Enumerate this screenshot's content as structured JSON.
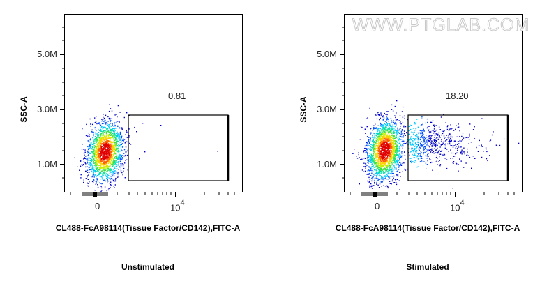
{
  "watermark": "WWW.PTGLAB.COM",
  "chart_data": [
    {
      "type": "scatter",
      "subtype": "flow-cytometry-density-dot-plot",
      "title": "Unstimulated",
      "xlabel": "CL488-FcA98114(Tissue Factor/CD142),FITC-A",
      "ylabel": "SSC-A",
      "x_scale": "biexponential",
      "x_ticks": [
        "0",
        "10^4"
      ],
      "y_ticks": [
        "1.0M",
        "3.0M",
        "5.0M"
      ],
      "ylim": [
        0,
        6500000
      ],
      "grid": false,
      "gate": {
        "type": "rectangle",
        "label": "0.81",
        "percent": 0.81,
        "x_range": [
          "~3x10^3",
          "~5x10^4"
        ],
        "y_range": [
          400000,
          2800000
        ]
      },
      "population": {
        "center": {
          "x": "~500",
          "y": 1300000
        },
        "y_spread": [
          700000,
          2600000
        ],
        "density_colormap": [
          "blue",
          "cyan",
          "green",
          "yellow",
          "red"
        ]
      }
    },
    {
      "type": "scatter",
      "subtype": "flow-cytometry-density-dot-plot",
      "title": "Stimulated",
      "xlabel": "CL488-FcA98114(Tissue Factor/CD142),FITC-A",
      "ylabel": "SSC-A",
      "x_scale": "biexponential",
      "x_ticks": [
        "0",
        "10^4"
      ],
      "y_ticks": [
        "1.0M",
        "3.0M",
        "5.0M"
      ],
      "ylim": [
        0,
        6500000
      ],
      "grid": false,
      "gate": {
        "type": "rectangle",
        "label": "18.20",
        "percent": 18.2,
        "x_range": [
          "~3x10^3",
          "~5x10^4"
        ],
        "y_range": [
          400000,
          2800000
        ]
      },
      "population": {
        "center": {
          "x": "~800",
          "y": 1400000
        },
        "y_spread": [
          700000,
          2600000
        ],
        "tail_into_gate": true,
        "density_colormap": [
          "blue",
          "cyan",
          "green",
          "yellow",
          "red"
        ]
      }
    }
  ],
  "panels": [
    {
      "ylabel": "SSC-A",
      "yticks": [
        "5.0M",
        "3.0M",
        "1.0M"
      ],
      "xtick0": "0",
      "xtick1_base": "10",
      "xtick1_exp": "4",
      "gate_label": "0.81",
      "xlabel": "CL488-FcA98114(Tissue Factor/CD142),FITC-A",
      "caption": "Unstimulated"
    },
    {
      "ylabel": "SSC-A",
      "yticks": [
        "5.0M",
        "3.0M",
        "1.0M"
      ],
      "xtick0": "0",
      "xtick1_base": "10",
      "xtick1_exp": "4",
      "gate_label": "18.20",
      "xlabel": "CL488-FcA98114(Tissue Factor/CD142),FITC-A",
      "caption": "Stimulated"
    }
  ]
}
